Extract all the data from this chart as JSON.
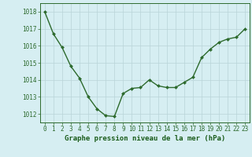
{
  "x": [
    0,
    1,
    2,
    3,
    4,
    5,
    6,
    7,
    8,
    9,
    10,
    11,
    12,
    13,
    14,
    15,
    16,
    17,
    18,
    19,
    20,
    21,
    22,
    23
  ],
  "y": [
    1018.0,
    1016.7,
    1015.9,
    1014.8,
    1014.1,
    1013.0,
    1012.3,
    1011.9,
    1011.85,
    1013.2,
    1013.5,
    1013.55,
    1014.0,
    1013.65,
    1013.55,
    1013.55,
    1013.85,
    1014.15,
    1015.3,
    1015.8,
    1016.2,
    1016.4,
    1016.5,
    1017.0
  ],
  "line_color": "#2d6a2d",
  "marker": "D",
  "marker_size": 2.0,
  "bg_color": "#d6eef2",
  "grid_color": "#b8d4d8",
  "xlabel": "Graphe pression niveau de la mer (hPa)",
  "xlabel_color": "#1a5c1a",
  "xlabel_fontsize": 6.5,
  "xlabel_fontweight": "bold",
  "xtick_labels": [
    "0",
    "1",
    "2",
    "3",
    "4",
    "5",
    "6",
    "7",
    "8",
    "9",
    "10",
    "11",
    "12",
    "13",
    "14",
    "15",
    "16",
    "17",
    "18",
    "19",
    "20",
    "21",
    "22",
    "23"
  ],
  "ytick_color": "#2d6a2d",
  "xtick_color": "#2d6a2d",
  "tick_fontsize": 5.5,
  "ylim": [
    1011.5,
    1018.5
  ],
  "yticks": [
    1012,
    1013,
    1014,
    1015,
    1016,
    1017,
    1018
  ],
  "spine_color": "#2d6a2d",
  "linewidth": 1.0,
  "fig_width": 3.2,
  "fig_height": 2.0,
  "dpi": 100
}
